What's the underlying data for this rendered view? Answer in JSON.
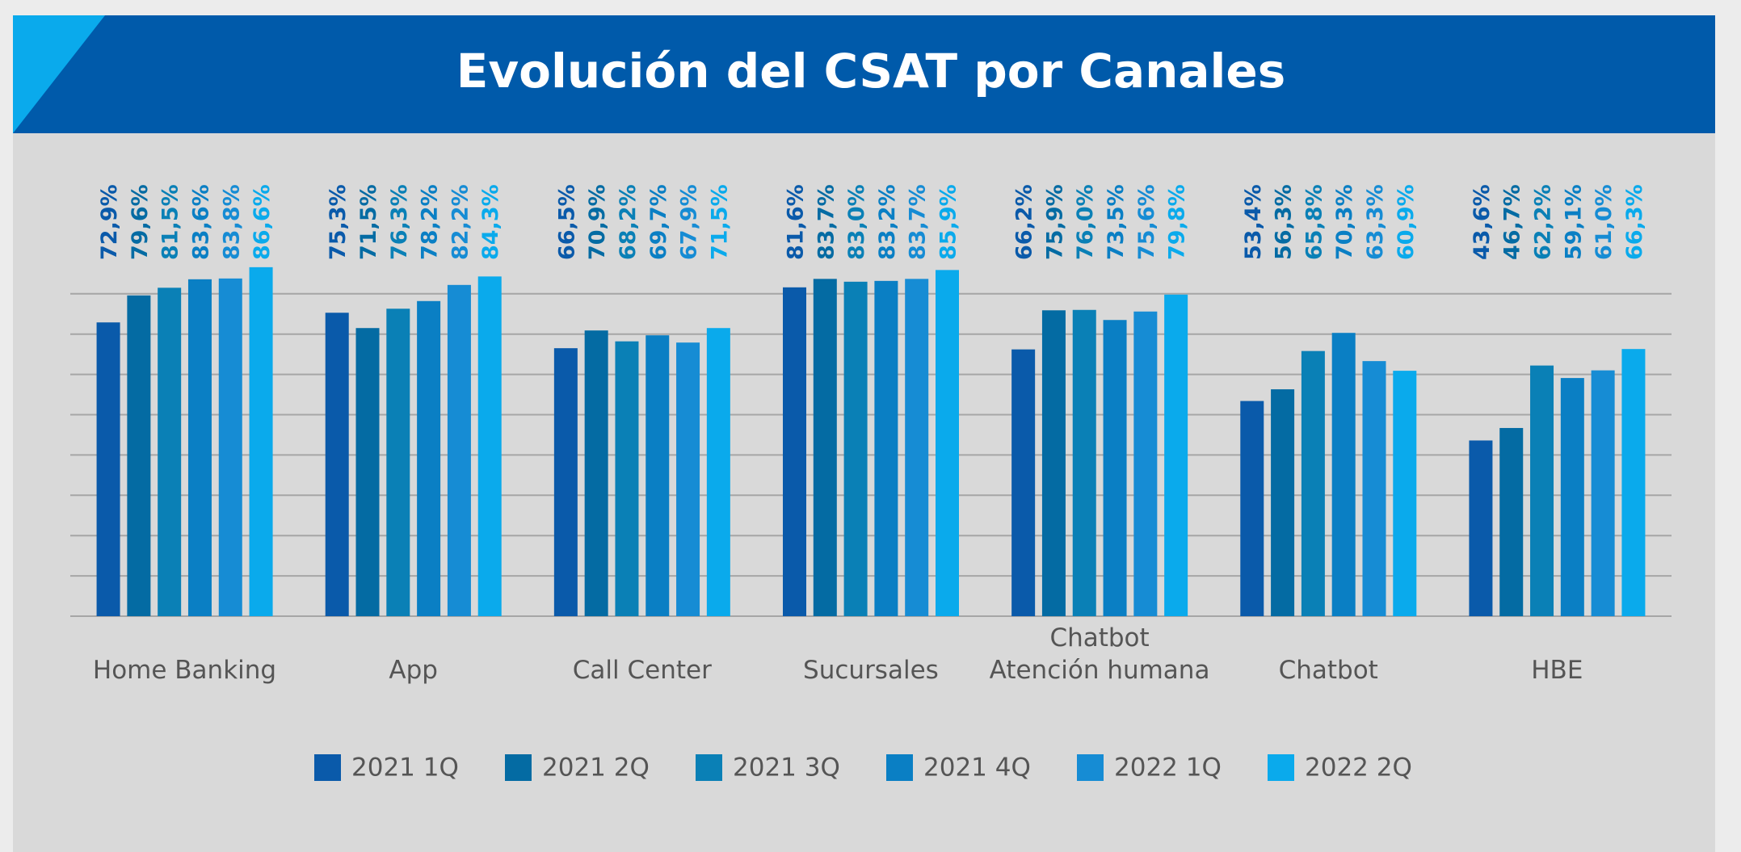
{
  "chart_data": {
    "type": "bar",
    "title": "Evolución del CSAT por Canales",
    "categories": [
      "Home Banking",
      "App",
      "Call Center",
      "Sucursales",
      "Chatbot\nAtención humana",
      "Chatbot",
      "HBE"
    ],
    "series": [
      {
        "name": "2021 1Q",
        "color": "#0a5aaa",
        "values": [
          72.9,
          75.3,
          66.5,
          81.6,
          66.2,
          53.4,
          43.6
        ],
        "value_labels": [
          "72,9%",
          "75,3%",
          "66,5%",
          "81,6%",
          "66,2%",
          "53,4%",
          "43,6%"
        ]
      },
      {
        "name": "2021 2Q",
        "color": "#046ba3",
        "values": [
          79.6,
          71.5,
          70.9,
          83.7,
          75.9,
          56.3,
          46.7
        ],
        "value_labels": [
          "79,6%",
          "71,5%",
          "70,9%",
          "83,7%",
          "75,9%",
          "56,3%",
          "46,7%"
        ]
      },
      {
        "name": "2021 3Q",
        "color": "#0a80b6",
        "values": [
          81.5,
          76.3,
          68.2,
          83.0,
          76.0,
          65.8,
          62.2
        ],
        "value_labels": [
          "81,5%",
          "76,3%",
          "68,2%",
          "83,0%",
          "76,0%",
          "65,8%",
          "62,2%"
        ]
      },
      {
        "name": "2021 4Q",
        "color": "#0a7fc4",
        "values": [
          83.6,
          78.2,
          69.7,
          83.2,
          73.5,
          70.3,
          59.1
        ],
        "value_labels": [
          "83,6%",
          "78,2%",
          "69,7%",
          "83,2%",
          "73,5%",
          "70,3%",
          "59,1%"
        ]
      },
      {
        "name": "2022 1Q",
        "color": "#168cd4",
        "values": [
          83.8,
          82.2,
          67.9,
          83.7,
          75.6,
          63.3,
          61.0
        ],
        "value_labels": [
          "83,8%",
          "82,2%",
          "67,9%",
          "83,7%",
          "75,6%",
          "63,3%",
          "61,0%"
        ]
      },
      {
        "name": "2022 2Q",
        "color": "#0aaaec",
        "values": [
          86.6,
          84.3,
          71.5,
          85.9,
          79.8,
          60.9,
          66.3
        ],
        "value_labels": [
          "86,6%",
          "84,3%",
          "71,5%",
          "85,9%",
          "79,8%",
          "60,9%",
          "66,3%"
        ]
      }
    ],
    "ylim": [
      0,
      100
    ],
    "yticks": [
      0,
      10,
      20,
      30,
      40,
      50,
      60,
      70,
      80
    ],
    "grid": true,
    "legend": "bottom"
  }
}
